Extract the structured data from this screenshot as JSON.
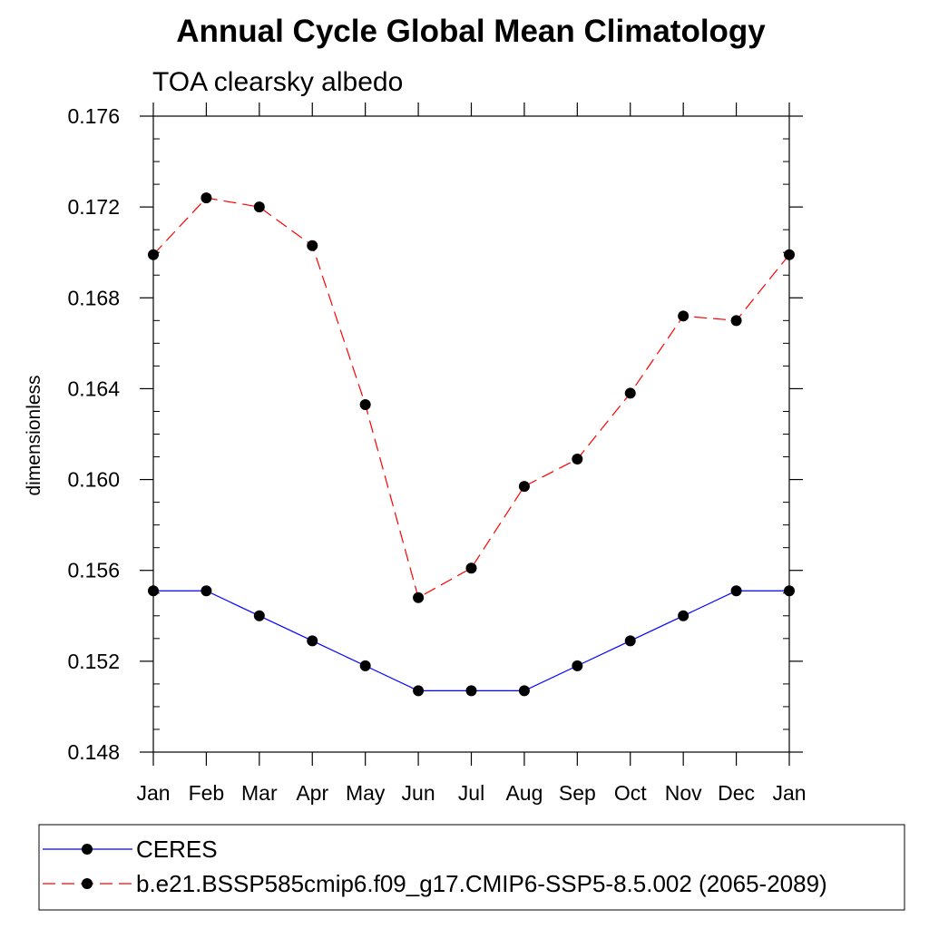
{
  "chart_data": {
    "type": "line",
    "title": "Annual Cycle Global Mean Climatology",
    "subtitle": "TOA clearsky albedo",
    "xlabel": "",
    "ylabel": "dimensionless",
    "categories": [
      "Jan",
      "Feb",
      "Mar",
      "Apr",
      "May",
      "Jun",
      "Jul",
      "Aug",
      "Sep",
      "Oct",
      "Nov",
      "Dec",
      "Jan"
    ],
    "ylim": [
      0.148,
      0.176
    ],
    "yticks": [
      "0.148",
      "0.152",
      "0.156",
      "0.160",
      "0.164",
      "0.168",
      "0.172",
      "0.176"
    ],
    "grid": false,
    "legend_position": "bottom",
    "series": [
      {
        "name": "CERES",
        "color": "#0000ff",
        "line_style": "solid",
        "marker": "filled-circle",
        "values": [
          0.1551,
          0.1551,
          0.154,
          0.1529,
          0.1518,
          0.1507,
          0.1507,
          0.1507,
          0.1518,
          0.1529,
          0.154,
          0.1551,
          0.1551
        ]
      },
      {
        "name": "b.e21.BSSP585cmip6.f09_g17.CMIP6-SSP5-8.5.002 (2065-2089)",
        "color": "#ff0000",
        "line_style": "dashed",
        "marker": "filled-circle",
        "values": [
          0.1699,
          0.1724,
          0.172,
          0.1703,
          0.1633,
          0.1548,
          0.1561,
          0.1597,
          0.1609,
          0.1638,
          0.1672,
          0.167,
          0.1699
        ]
      }
    ]
  }
}
